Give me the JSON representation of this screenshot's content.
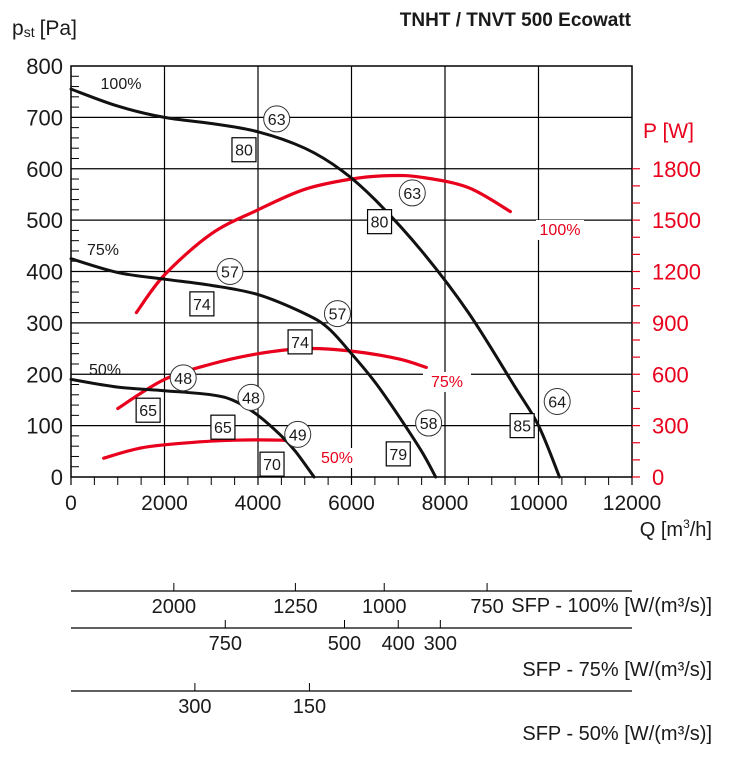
{
  "chart_data": {
    "type": "line",
    "title": "TNHT / TNVT 500 Ecowatt",
    "xlabel": "Q [m³/h]",
    "ylabel": "pst [Pa]",
    "ylabel_main": "p",
    "ylabel_sub": "st",
    "ylabel_unit": "[Pa]",
    "y2label": "P [W]",
    "xlim": [
      0,
      12000
    ],
    "ylim": [
      0,
      800
    ],
    "y2lim": [
      0,
      2400
    ],
    "x_ticks": [
      0,
      2000,
      4000,
      6000,
      8000,
      10000,
      12000
    ],
    "y_ticks": [
      0,
      100,
      200,
      300,
      400,
      500,
      600,
      700,
      800
    ],
    "y2_ticks": [
      0,
      300,
      600,
      900,
      1200,
      1500,
      1800
    ],
    "grid": true,
    "accent_color": "#e8001c",
    "pressure_series": [
      {
        "name": "100%",
        "label": "100%",
        "x": [
          0,
          1000,
          2000,
          3000,
          4000,
          5000,
          5800,
          6500,
          7500,
          8500,
          9500,
          10000,
          10450
        ],
        "y": [
          755,
          722,
          700,
          688,
          672,
          640,
          596,
          540,
          440,
          320,
          175,
          100,
          0
        ]
      },
      {
        "name": "75%",
        "label": "75%",
        "x": [
          0,
          1000,
          2000,
          3000,
          4000,
          5000,
          5500,
          6000,
          6500,
          7000,
          7500,
          7800
        ],
        "y": [
          425,
          398,
          385,
          373,
          355,
          318,
          290,
          240,
          185,
          120,
          50,
          0
        ]
      },
      {
        "name": "50%",
        "label": "50%",
        "x": [
          0,
          1000,
          2000,
          3000,
          3500,
          4000,
          4500,
          4800,
          5200
        ],
        "y": [
          190,
          175,
          168,
          160,
          148,
          120,
          80,
          50,
          0
        ]
      }
    ],
    "power_series": [
      {
        "name": "100%",
        "label": "100%",
        "x": [
          1400,
          2000,
          3000,
          4000,
          5000,
          6000,
          6800,
          7500,
          8500,
          9400
        ],
        "y": [
          960,
          1180,
          1420,
          1560,
          1680,
          1740,
          1760,
          1750,
          1690,
          1550
        ]
      },
      {
        "name": "75%",
        "label": "75%",
        "x": [
          1000,
          2000,
          3000,
          4000,
          5000,
          6000,
          7000,
          7600
        ],
        "y": [
          400,
          570,
          660,
          720,
          750,
          735,
          690,
          640
        ]
      },
      {
        "name": "50%",
        "label": "50%",
        "x": [
          700,
          1500,
          2500,
          3500,
          4500,
          4950
        ],
        "y": [
          110,
          170,
          200,
          215,
          215,
          205
        ]
      }
    ],
    "annotations": [
      {
        "kind": "circle",
        "text": "63",
        "x": 4400,
        "y": 697
      },
      {
        "kind": "box",
        "text": "80",
        "x": 3700,
        "y": 637
      },
      {
        "kind": "circle",
        "text": "63",
        "x": 7300,
        "y": 553
      },
      {
        "kind": "box",
        "text": "80",
        "x": 6600,
        "y": 497
      },
      {
        "kind": "circle",
        "text": "57",
        "x": 3400,
        "y": 400
      },
      {
        "kind": "box",
        "text": "74",
        "x": 2800,
        "y": 337
      },
      {
        "kind": "circle",
        "text": "57",
        "x": 5700,
        "y": 318
      },
      {
        "kind": "box",
        "text": "74",
        "x": 4900,
        "y": 263
      },
      {
        "kind": "circle",
        "text": "48",
        "x": 2400,
        "y": 193
      },
      {
        "kind": "box",
        "text": "65",
        "x": 1650,
        "y": 130
      },
      {
        "kind": "circle",
        "text": "48",
        "x": 3850,
        "y": 155
      },
      {
        "kind": "box",
        "text": "65",
        "x": 3250,
        "y": 97
      },
      {
        "kind": "circle",
        "text": "49",
        "x": 4850,
        "y": 83
      },
      {
        "kind": "box",
        "text": "70",
        "x": 4300,
        "y": 25
      },
      {
        "kind": "circle",
        "text": "58",
        "x": 7650,
        "y": 105
      },
      {
        "kind": "box",
        "text": "79",
        "x": 7000,
        "y": 45
      },
      {
        "kind": "circle",
        "text": "64",
        "x": 10400,
        "y": 147
      },
      {
        "kind": "box",
        "text": "85",
        "x": 9650,
        "y": 100
      }
    ],
    "sfp_scales": [
      {
        "label": "SFP - 100% [W/(m³/s)]",
        "ticks": [
          {
            "text": "2000",
            "q": 2200
          },
          {
            "text": "1250",
            "q": 4800
          },
          {
            "text": "1000",
            "q": 6700
          },
          {
            "text": "750",
            "q": 8900
          }
        ]
      },
      {
        "label": "SFP - 75% [W/(m³/s)]",
        "ticks": [
          {
            "text": "750",
            "q": 3300
          },
          {
            "text": "500",
            "q": 5850
          },
          {
            "text": "400",
            "q": 7000
          },
          {
            "text": "300",
            "q": 7900
          }
        ]
      },
      {
        "label": "SFP - 50% [W/(m³/s)]",
        "ticks": [
          {
            "text": "300",
            "q": 2650
          },
          {
            "text": "150",
            "q": 5100
          }
        ]
      }
    ]
  }
}
